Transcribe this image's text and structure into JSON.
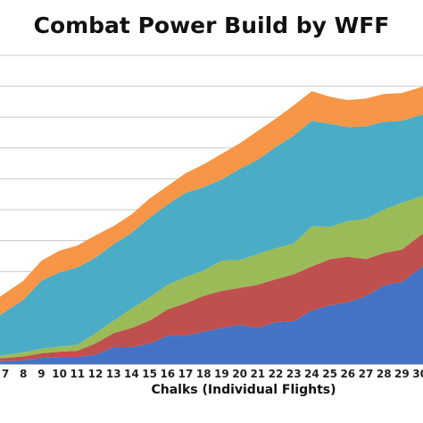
{
  "chart_data": {
    "type": "area",
    "stacked": true,
    "title": "Combat Power Build by WFF",
    "xlabel": "Chalks (Individual Flights)",
    "ylabel": "",
    "categories": [
      "7",
      "8",
      "9",
      "10",
      "11",
      "12",
      "13",
      "14",
      "15",
      "16",
      "17",
      "18",
      "19",
      "20",
      "21",
      "22",
      "23",
      "24",
      "25",
      "26",
      "27",
      "28",
      "29",
      "30"
    ],
    "grid": true,
    "ylim": [
      0,
      100
    ],
    "series": [
      {
        "color": "#4472C4",
        "values": [
          1.0,
          1.2,
          2.0,
          2.3,
          2.3,
          3.0,
          5.5,
          5.5,
          6.6,
          9.2,
          9.2,
          10.5,
          11.7,
          12.7,
          11.7,
          13.6,
          13.9,
          17.4,
          19.0,
          20.0,
          22.0,
          25.5,
          26.6,
          31.0
        ]
      },
      {
        "color": "#C0504D",
        "values": [
          1.0,
          1.3,
          1.5,
          1.7,
          2.0,
          3.7,
          4.5,
          6.2,
          7.5,
          8.5,
          10.5,
          11.6,
          12.0,
          12.0,
          14.0,
          13.9,
          15.2,
          14.2,
          15.0,
          14.8,
          12.0,
          10.5,
          10.5,
          10.6
        ]
      },
      {
        "color": "#9BBB59",
        "values": [
          1.0,
          1.3,
          1.5,
          1.7,
          2.0,
          3.3,
          4.0,
          6.3,
          7.5,
          8.0,
          8.5,
          8.2,
          9.8,
          9.0,
          10.0,
          10.0,
          10.0,
          13.0,
          10.5,
          11.5,
          13.0,
          14.0,
          15.2,
          12.6
        ]
      },
      {
        "color": "#4BACC6",
        "values": [
          14.0,
          17.0,
          22.0,
          24.0,
          25.0,
          24.5,
          24.8,
          24.5,
          25.8,
          26.0,
          27.3,
          27.0,
          26.3,
          29.5,
          30.5,
          32.8,
          34.9,
          34.2,
          33.3,
          30.5,
          30.0,
          28.5,
          26.5,
          26.4
        ]
      },
      {
        "color": "#F79646",
        "values": [
          6.0,
          6.2,
          6.5,
          7.0,
          7.1,
          7.2,
          5.9,
          6.0,
          6.2,
          6.0,
          6.3,
          7.4,
          8.3,
          8.3,
          9.3,
          9.2,
          9.8,
          9.6,
          8.8,
          8.7,
          9.0,
          9.0,
          9.0,
          9.0
        ]
      }
    ]
  }
}
